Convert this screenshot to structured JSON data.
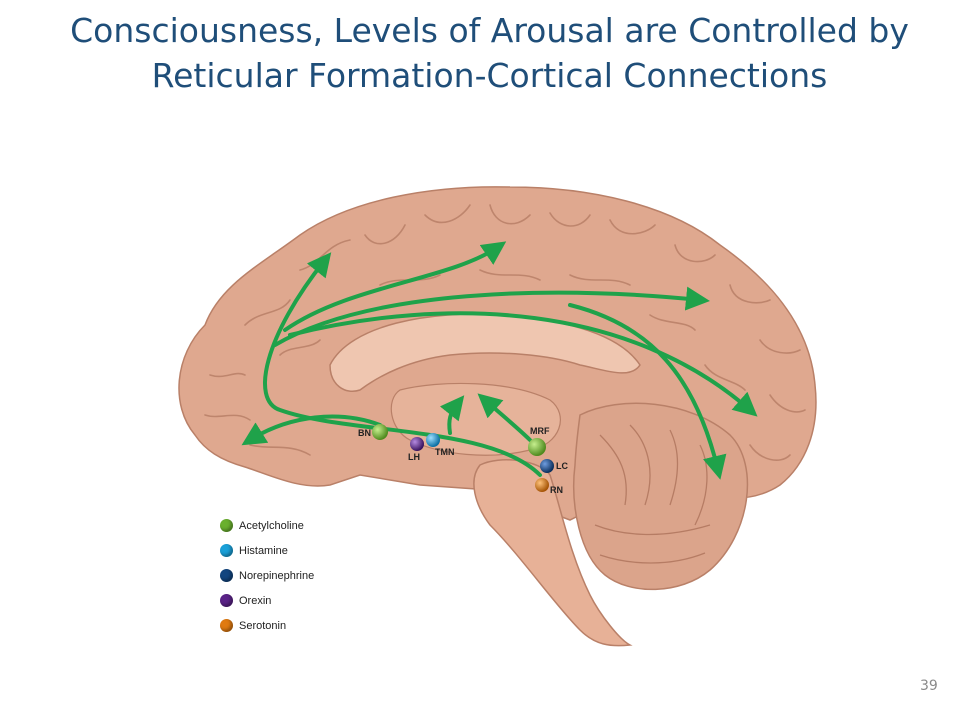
{
  "slide": {
    "title_line1": "Consciousness, Levels of Arousal are Controlled by",
    "title_line2": "Reticular Formation-Cortical Connections",
    "page_number": "39"
  },
  "nuclei": {
    "bn": "BN",
    "lh": "LH",
    "tmn": "TMN",
    "mrf": "MRF",
    "lc": "LC",
    "rn": "RN"
  },
  "legend": {
    "items": [
      {
        "label": "Acetylcholine",
        "color": "#6ab02e"
      },
      {
        "label": "Histamine",
        "color": "#1aa0d8"
      },
      {
        "label": "Norepinephrine",
        "color": "#12457f"
      },
      {
        "label": "Orexin",
        "color": "#5a2387"
      },
      {
        "label": "Serotonin",
        "color": "#e07a10"
      }
    ]
  },
  "colors": {
    "pathway": "#1fa24a",
    "brain": "#dfa88f",
    "brain_dark": "#b98068",
    "title": "#1f4e79"
  }
}
